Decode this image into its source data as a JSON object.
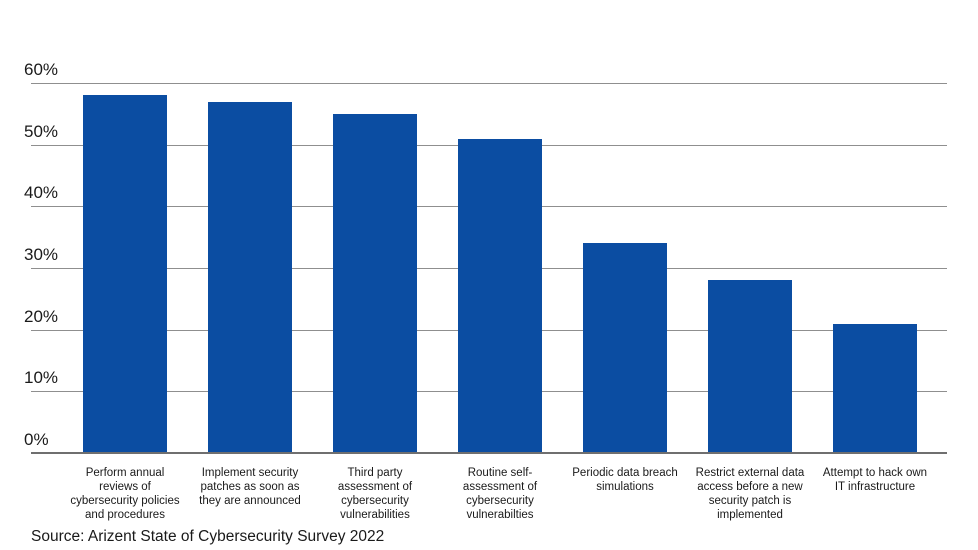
{
  "chart_data": {
    "type": "bar",
    "title": "",
    "xlabel": "",
    "ylabel": "",
    "ylim": [
      0,
      60
    ],
    "ytick_step": 10,
    "yticks": [
      "60%",
      "50%",
      "40%",
      "30%",
      "20%",
      "10%",
      "0%"
    ],
    "grid": true,
    "legend": false,
    "categories": [
      "Perform annual\nreviews of\ncybersecurity policies\nand procedures",
      "Implement security\npatches as soon as\nthey are announced",
      "Third party\nassessment of\ncybersecurity\nvulnerabilities",
      "Routine self-\nassessment of\ncybersecurity\nvulnerabilties",
      "Periodic data breach\nsimulations",
      "Restrict external data\naccess before a new\nsecurity patch is\nimplemented",
      "Attempt to hack own\nIT infrastructure"
    ],
    "values": [
      58,
      57,
      55,
      51,
      34,
      28,
      21
    ],
    "unit": "%",
    "source": "Source: Arizent State of Cybersecurity Survey 2022"
  },
  "colors": {
    "bar": "#0B4DA2",
    "gridline": "#8F8F8F",
    "axis_line": "#6F6F6F",
    "text": "#1A1A1A",
    "background": "#FFFFFF"
  }
}
